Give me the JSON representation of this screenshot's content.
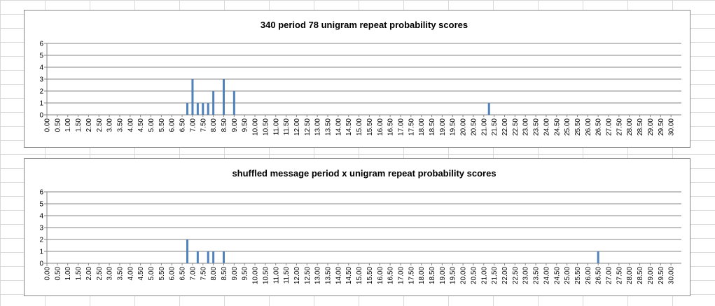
{
  "colors": {
    "bar": "#4f81bd",
    "grid": "#868686",
    "axis": "#868686"
  },
  "chart_data": [
    {
      "type": "bar",
      "title": "340 period 78 unigram repeat probability scores",
      "ylim": [
        0,
        6
      ],
      "yticks": [
        0,
        1,
        2,
        3,
        4,
        5,
        6
      ],
      "grid": true,
      "legend": "none",
      "categories": [
        "0.00",
        "0.50",
        "1.00",
        "1.50",
        "2.00",
        "2.50",
        "3.00",
        "3.50",
        "4.00",
        "4.50",
        "5.00",
        "5.50",
        "6.00",
        "6.50",
        "7.00",
        "7.50",
        "8.00",
        "8.50",
        "9.00",
        "9.50",
        "10.00",
        "10.50",
        "11.00",
        "11.50",
        "12.00",
        "12.50",
        "13.00",
        "13.50",
        "14.00",
        "14.50",
        "15.00",
        "15.50",
        "16.00",
        "16.50",
        "17.00",
        "17.50",
        "18.00",
        "18.50",
        "19.00",
        "19.50",
        "20.00",
        "20.50",
        "21.00",
        "21.50",
        "22.00",
        "22.50",
        "23.00",
        "23.50",
        "24.00",
        "24.50",
        "25.00",
        "25.50",
        "26.00",
        "26.50",
        "27.00",
        "27.50",
        "28.00",
        "28.50",
        "29.00",
        "29.50",
        "30.00"
      ],
      "bars": [
        {
          "x": 6.75,
          "value": 1
        },
        {
          "x": 7.0,
          "value": 3
        },
        {
          "x": 7.25,
          "value": 1
        },
        {
          "x": 7.5,
          "value": 1
        },
        {
          "x": 7.75,
          "value": 1
        },
        {
          "x": 8.0,
          "value": 2
        },
        {
          "x": 8.5,
          "value": 3
        },
        {
          "x": 9.0,
          "value": 2
        },
        {
          "x": 21.25,
          "value": 1
        }
      ]
    },
    {
      "type": "bar",
      "title": "shuffled message period x unigram repeat probability scores",
      "ylim": [
        0,
        6
      ],
      "yticks": [
        0,
        1,
        2,
        3,
        4,
        5,
        6
      ],
      "grid": true,
      "legend": "none",
      "categories": [
        "0.00",
        "0.50",
        "1.00",
        "1.50",
        "2.00",
        "2.50",
        "3.00",
        "3.50",
        "4.00",
        "4.50",
        "5.00",
        "5.50",
        "6.00",
        "6.50",
        "7.00",
        "7.50",
        "8.00",
        "8.50",
        "9.00",
        "9.50",
        "10.00",
        "10.50",
        "11.00",
        "11.50",
        "12.00",
        "12.50",
        "13.00",
        "13.50",
        "14.00",
        "14.50",
        "15.00",
        "15.50",
        "16.00",
        "16.50",
        "17.00",
        "17.50",
        "18.00",
        "18.50",
        "19.00",
        "19.50",
        "20.00",
        "20.50",
        "21.00",
        "21.50",
        "22.00",
        "22.50",
        "23.00",
        "23.50",
        "24.00",
        "24.50",
        "25.00",
        "25.50",
        "26.00",
        "26.50",
        "27.00",
        "27.50",
        "28.00",
        "28.50",
        "29.00",
        "29.50",
        "30.00"
      ],
      "bars": [
        {
          "x": 6.75,
          "value": 2
        },
        {
          "x": 7.25,
          "value": 1
        },
        {
          "x": 7.75,
          "value": 1
        },
        {
          "x": 8.0,
          "value": 1
        },
        {
          "x": 8.5,
          "value": 1
        },
        {
          "x": 26.5,
          "value": 1
        }
      ]
    }
  ]
}
